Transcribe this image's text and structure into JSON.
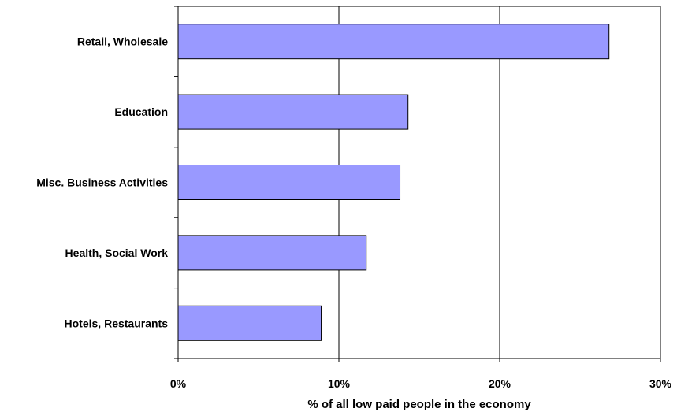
{
  "chart_data": {
    "type": "bar",
    "orientation": "horizontal",
    "categories": [
      "Retail, Wholesale",
      "Education",
      "Misc. Business Activities",
      "Health, Social Work",
      "Hotels, Restaurants"
    ],
    "values": [
      26.8,
      14.3,
      13.8,
      11.7,
      8.9
    ],
    "xlabel": "% of all low paid people in the economy",
    "xlim": [
      0,
      30
    ],
    "xticks": [
      0,
      10,
      20,
      30
    ],
    "xtick_labels": [
      "0%",
      "10%",
      "20%",
      "30%"
    ],
    "grid": "vertical",
    "legend": "none",
    "colors": {
      "bar_fill": "#9999ff",
      "bar_stroke": "#000000",
      "axis": "#000000"
    }
  }
}
